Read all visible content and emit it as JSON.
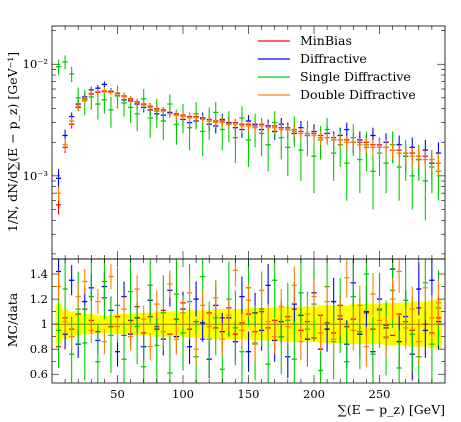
{
  "chart_data": {
    "type": "scatter",
    "x": [
      5,
      10,
      15,
      20,
      25,
      30,
      35,
      40,
      45,
      50,
      55,
      60,
      65,
      70,
      75,
      80,
      85,
      90,
      95,
      100,
      105,
      110,
      115,
      120,
      125,
      130,
      135,
      140,
      145,
      150,
      155,
      160,
      165,
      170,
      175,
      180,
      185,
      190,
      195,
      200,
      205,
      210,
      215,
      220,
      225,
      230,
      235,
      240,
      245,
      250,
      255,
      260,
      265,
      270,
      275,
      280,
      285,
      290,
      295
    ],
    "xlim": [
      0,
      300
    ],
    "xlabel": "∑(E − p_z) [GeV]",
    "xticks": [
      "50",
      "100",
      "150",
      "200",
      "250"
    ],
    "top_panel": {
      "ylabel": "1/N, dN/d∑(E − p_z) [GeV⁻¹]",
      "ylim": [
        0.00018,
        0.022
      ],
      "log_scale": true,
      "yticks": [
        "10⁻³",
        "10⁻²"
      ]
    },
    "ratio_panel": {
      "ylabel": "MC/data",
      "ylim": [
        0.53,
        1.52
      ],
      "yticks": [
        "0.6",
        "0.8",
        "1",
        "1.2",
        "1.4"
      ],
      "reference_line": 1,
      "data_uncertainty_half_width": [
        0.16,
        0.12,
        0.1,
        0.09,
        0.08,
        0.08,
        0.07,
        0.07,
        0.07,
        0.08,
        0.08,
        0.08,
        0.09,
        0.09,
        0.09,
        0.1,
        0.1,
        0.1,
        0.1,
        0.1,
        0.11,
        0.11,
        0.11,
        0.11,
        0.12,
        0.12,
        0.12,
        0.12,
        0.12,
        0.13,
        0.13,
        0.13,
        0.13,
        0.13,
        0.14,
        0.14,
        0.14,
        0.14,
        0.14,
        0.14,
        0.15,
        0.15,
        0.15,
        0.15,
        0.15,
        0.16,
        0.16,
        0.16,
        0.16,
        0.16,
        0.17,
        0.17,
        0.17,
        0.17,
        0.18,
        0.18,
        0.18,
        0.19,
        0.2
      ]
    },
    "legend_position": "top-right",
    "series": [
      {
        "name": "MinBias",
        "color": "#ff0000",
        "values": [
          0.00055,
          0.0018,
          0.0029,
          0.0041,
          0.0049,
          0.0054,
          0.0056,
          0.0057,
          0.0057,
          0.0055,
          0.0052,
          0.0049,
          0.0046,
          0.0044,
          0.0042,
          0.004,
          0.0039,
          0.0037,
          0.0036,
          0.0035,
          0.0034,
          0.0034,
          0.0033,
          0.0032,
          0.0031,
          0.0031,
          0.003,
          0.003,
          0.0029,
          0.0029,
          0.0028,
          0.0029,
          0.0028,
          0.0028,
          0.0027,
          0.0027,
          0.0026,
          0.0025,
          0.0024,
          0.0024,
          0.0023,
          0.0022,
          0.0022,
          0.0021,
          0.0021,
          0.002,
          0.002,
          0.002,
          0.0019,
          0.0019,
          0.0018,
          0.0017,
          0.0017,
          0.0016,
          0.0016,
          0.0015,
          0.0015,
          0.0014,
          0.0013
        ],
        "errors": [
          0.0001,
          0.0002,
          0.00025,
          0.0003,
          0.0003,
          0.0003,
          0.0003,
          0.0003,
          0.0003,
          0.0003,
          0.0003,
          0.0003,
          0.0003,
          0.0003,
          0.0003,
          0.00025,
          0.00025,
          0.00025,
          0.00025,
          0.00025,
          0.00025,
          0.00025,
          0.00025,
          0.00025,
          0.00025,
          0.00025,
          0.00025,
          0.00025,
          0.00025,
          0.00025,
          0.00025,
          0.00025,
          0.00025,
          0.00025,
          0.00025,
          0.00025,
          0.00025,
          0.00025,
          0.00025,
          0.00025,
          0.00025,
          0.00025,
          0.00025,
          0.00025,
          0.00025,
          0.00025,
          0.00025,
          0.00025,
          0.00025,
          0.00025,
          0.00025,
          0.00025,
          0.00025,
          0.00025,
          0.00025,
          0.00025,
          0.00025,
          0.00025,
          0.00025
        ],
        "ratio": [
          0.82,
          1.05,
          0.96,
          1.08,
          1.12,
          1.03,
          0.94,
          1.21,
          0.98,
          1.06,
          0.91,
          1.03,
          1.14,
          0.93,
          1.06,
          0.98,
          1.11,
          0.92,
          1.04,
          1.17,
          0.96,
          1.02,
          0.88,
          1.09,
          0.97,
          1.05,
          1.13,
          0.92,
          1.01,
          1.08,
          0.94,
          1.1,
          0.97,
          1.03,
          0.9,
          1.06,
          1.12,
          0.95,
          1.02,
          0.89,
          1.07,
          1.01,
          0.93,
          1.15,
          0.98,
          1.04,
          0.92,
          1.09,
          0.96,
          1.12,
          0.99,
          0.91,
          1.08,
          1.02,
          0.95,
          1.13,
          1,
          0.93,
          1.05
        ]
      },
      {
        "name": "Diffractive",
        "color": "#0000ff",
        "values": [
          0.00095,
          0.0023,
          0.0034,
          0.0044,
          0.0051,
          0.0059,
          0.0061,
          0.0066,
          0.0057,
          0.0052,
          0.0048,
          0.0047,
          0.0044,
          0.0041,
          0.0039,
          0.0036,
          0.0035,
          0.0037,
          0.0035,
          0.0032,
          0.003,
          0.0031,
          0.0033,
          0.0029,
          0.0028,
          0.0032,
          0.003,
          0.0027,
          0.0026,
          0.0031,
          0.0029,
          0.0026,
          0.0028,
          0.0025,
          0.0029,
          0.0026,
          0.0024,
          0.0027,
          0.0023,
          0.0025,
          0.0022,
          0.0024,
          0.0021,
          0.0023,
          0.0026,
          0.002,
          0.0021,
          0.0019,
          0.0023,
          0.0018,
          0.002,
          0.0017,
          0.0019,
          0.0015,
          0.0018,
          0.0014,
          0.0017,
          0.0013,
          0.0016
        ],
        "errors": [
          0.0002,
          0.0003,
          0.0003,
          0.0004,
          0.0004,
          0.0004,
          0.0004,
          0.0004,
          0.0004,
          0.0004,
          0.0004,
          0.0004,
          0.0004,
          0.0004,
          0.0004,
          0.0004,
          0.0004,
          0.0004,
          0.0004,
          0.0004,
          0.0004,
          0.0004,
          0.0004,
          0.0004,
          0.0004,
          0.0004,
          0.0004,
          0.0004,
          0.0004,
          0.0004,
          0.0004,
          0.0004,
          0.0004,
          0.0004,
          0.0004,
          0.0004,
          0.0004,
          0.0004,
          0.0004,
          0.0004,
          0.0004,
          0.0004,
          0.0004,
          0.0004,
          0.0004,
          0.0004,
          0.0004,
          0.0004,
          0.0004,
          0.0004,
          0.0004,
          0.0004,
          0.0004,
          0.0004,
          0.0004,
          0.0004,
          0.0004,
          0.0004,
          0.0004
        ],
        "ratio": [
          1.42,
          0.92,
          1.35,
          0.84,
          1.18,
          1.29,
          0.87,
          1.3,
          1.11,
          0.78,
          1.22,
          0.92,
          1.05,
          0.82,
          1.19,
          0.96,
          0.88,
          1.27,
          0.9,
          1.12,
          0.82,
          1.2,
          1.01,
          0.72,
          1.15,
          0.94,
          1.05,
          0.86,
          1.22,
          0.78,
          1.09,
          0.95,
          1.31,
          0.87,
          1.02,
          0.74,
          1.16,
          1.07,
          0.88,
          1.25,
          0.8,
          0.96,
          1.18,
          1.04,
          0.84,
          1.33,
          0.92,
          1.1,
          0.78,
          1.2,
          0.97,
          1.44,
          0.86,
          1.06,
          0.76,
          1.28,
          0.95,
          1.35,
          1.02
        ],
        "ratio_errors": [
          0.18,
          0.12,
          0.12,
          0.11,
          0.11,
          0.11,
          0.11,
          0.11,
          0.11,
          0.12,
          0.12,
          0.12,
          0.12,
          0.12,
          0.13,
          0.13,
          0.13,
          0.13,
          0.14,
          0.14,
          0.14,
          0.14,
          0.15,
          0.15,
          0.15,
          0.15,
          0.15,
          0.16,
          0.16,
          0.16,
          0.16,
          0.16,
          0.17,
          0.17,
          0.17,
          0.17,
          0.17,
          0.18,
          0.18,
          0.18,
          0.18,
          0.18,
          0.19,
          0.19,
          0.19,
          0.19,
          0.19,
          0.2,
          0.2,
          0.2,
          0.2,
          0.2,
          0.21,
          0.21,
          0.21,
          0.21,
          0.22,
          0.22,
          0.22
        ]
      },
      {
        "name": "Single Diffractive",
        "color": "#00cc00",
        "values": [
          0.0095,
          0.0105,
          0.0082,
          0.005,
          0.0047,
          0.0051,
          0.0044,
          0.0048,
          0.0039,
          0.0052,
          0.0045,
          0.0041,
          0.0036,
          0.0049,
          0.0033,
          0.0038,
          0.0031,
          0.0044,
          0.0029,
          0.0034,
          0.0027,
          0.0036,
          0.0025,
          0.0031,
          0.0037,
          0.0026,
          0.0029,
          0.0022,
          0.0033,
          0.0021,
          0.0027,
          0.0024,
          0.0019,
          0.003,
          0.0022,
          0.0018,
          0.0026,
          0.0017,
          0.0023,
          0.0015,
          0.0021,
          0.0026,
          0.0016,
          0.0019,
          0.0013,
          0.0022,
          0.0014,
          0.0018,
          0.0011,
          0.0016,
          0.0013,
          0.0019,
          0.0012,
          0.0015,
          0.001,
          0.0014,
          0.0009,
          0.0012,
          0.0011
        ],
        "errors": [
          0.0015,
          0.0015,
          0.0013,
          0.0012,
          0.0012,
          0.0012,
          0.0012,
          0.0012,
          0.0012,
          0.0012,
          0.0011,
          0.0011,
          0.0011,
          0.0011,
          0.0011,
          0.0011,
          0.001,
          0.001,
          0.001,
          0.001,
          0.001,
          0.001,
          0.001,
          0.001,
          0.0009,
          0.0009,
          0.0009,
          0.0009,
          0.0009,
          0.0009,
          0.0009,
          0.0009,
          0.0008,
          0.0008,
          0.0008,
          0.0008,
          0.0008,
          0.0008,
          0.0008,
          0.0008,
          0.0007,
          0.0007,
          0.0007,
          0.0007,
          0.0007,
          0.0007,
          0.0007,
          0.0007,
          0.0006,
          0.0006,
          0.0006,
          0.0006,
          0.0006,
          0.0006,
          0.0005,
          0.0005,
          0.0005,
          0.0005,
          0.0005
        ],
        "ratio": [
          0.95,
          1.28,
          0.76,
          1.12,
          0.85,
          1.22,
          0.7,
          1.34,
          0.91,
          1.15,
          0.72,
          1.26,
          0.98,
          0.66,
          1.31,
          0.83,
          1.09,
          0.61,
          1.24,
          0.93,
          1.18,
          0.74,
          1.38,
          0.88,
          1.05,
          0.64,
          1.2,
          0.97,
          0.78,
          1.29,
          0.85,
          1.12,
          0.68,
          1.35,
          0.9,
          1.03,
          0.72,
          1.25,
          0.96,
          1.16,
          0.63,
          1.3,
          0.86,
          1.07,
          0.7,
          1.22,
          0.94,
          1.4,
          0.76,
          1.11,
          0.89,
          1.27,
          0.65,
          1.19,
          0.92,
          0.74,
          1.33,
          0.84,
          1.13
        ],
        "ratio_errors": [
          0.3,
          0.3,
          0.3,
          0.3,
          0.3,
          0.3,
          0.3,
          0.3,
          0.3,
          0.3,
          0.3,
          0.3,
          0.3,
          0.3,
          0.3,
          0.3,
          0.3,
          0.3,
          0.3,
          0.3,
          0.3,
          0.3,
          0.3,
          0.3,
          0.3,
          0.3,
          0.3,
          0.3,
          0.3,
          0.3,
          0.3,
          0.3,
          0.3,
          0.3,
          0.3,
          0.3,
          0.3,
          0.3,
          0.3,
          0.3,
          0.3,
          0.3,
          0.3,
          0.3,
          0.3,
          0.3,
          0.3,
          0.3,
          0.3,
          0.3,
          0.3,
          0.3,
          0.3,
          0.3,
          0.3,
          0.3,
          0.3,
          0.3,
          0.3
        ]
      },
      {
        "name": "Double Diffractive",
        "color": "#ff8000",
        "values": [
          0.0007,
          0.0019,
          0.0031,
          0.0042,
          0.0048,
          0.0055,
          0.0057,
          0.0058,
          0.0056,
          0.0054,
          0.0051,
          0.0048,
          0.0045,
          0.0043,
          0.0041,
          0.0039,
          0.0038,
          0.0036,
          0.0035,
          0.0034,
          0.0033,
          0.0033,
          0.0032,
          0.0031,
          0.003,
          0.003,
          0.0029,
          0.0029,
          0.0028,
          0.0028,
          0.0027,
          0.0028,
          0.0027,
          0.0027,
          0.0026,
          0.0026,
          0.0025,
          0.0024,
          0.0024,
          0.0023,
          0.0022,
          0.0022,
          0.0021,
          0.0021,
          0.002,
          0.002,
          0.0019,
          0.0019,
          0.0018,
          0.0018,
          0.0018,
          0.0017,
          0.0016,
          0.0016,
          0.0015,
          0.0015,
          0.0014,
          0.0014,
          0.0013
        ],
        "errors": [
          0.0001,
          0.00025,
          0.0003,
          0.00035,
          0.00035,
          0.00035,
          0.00035,
          0.00035,
          0.00035,
          0.00035,
          0.00035,
          0.00035,
          0.00035,
          0.00035,
          0.0003,
          0.0003,
          0.0003,
          0.0003,
          0.0003,
          0.0003,
          0.0003,
          0.0003,
          0.0003,
          0.0003,
          0.0003,
          0.0003,
          0.0003,
          0.0003,
          0.0003,
          0.0003,
          0.0003,
          0.0003,
          0.0003,
          0.0003,
          0.0003,
          0.0003,
          0.0003,
          0.0003,
          0.0003,
          0.0003,
          0.0003,
          0.0003,
          0.0003,
          0.0003,
          0.0003,
          0.0003,
          0.0003,
          0.0003,
          0.0003,
          0.0003,
          0.0003,
          0.0003,
          0.0003,
          0.0003,
          0.0003,
          0.0003,
          0.0003,
          0.0003,
          0.0003
        ],
        "ratio": [
          1.3,
          1.02,
          0.9,
          1.22,
          1.34,
          0.95,
          1.18,
          0.86,
          1.38,
          0.98,
          1.12,
          0.9,
          1.28,
          1.04,
          0.82,
          1.16,
          0.94,
          1.32,
          0.88,
          1.09,
          1.25,
          0.8,
          1.15,
          0.98,
          1.21,
          0.88,
          1.07,
          1.43,
          0.95,
          1.19,
          0.84,
          1.27,
          1.02,
          0.9,
          1.14,
          0.98,
          1.31,
          0.86,
          1.08,
          1.22,
          0.93,
          1.18,
          0.88,
          1.06,
          1.37,
          0.95,
          1.15,
          0.82,
          1.24,
          1.03,
          0.9,
          1.2,
          1.42,
          0.97,
          1.12,
          0.86,
          1.29,
          1.05,
          1.17
        ],
        "ratio_errors": [
          0.12,
          0.1,
          0.1,
          0.1,
          0.1,
          0.1,
          0.1,
          0.1,
          0.1,
          0.1,
          0.1,
          0.11,
          0.11,
          0.11,
          0.11,
          0.11,
          0.11,
          0.11,
          0.12,
          0.12,
          0.12,
          0.12,
          0.12,
          0.12,
          0.13,
          0.13,
          0.13,
          0.13,
          0.13,
          0.13,
          0.14,
          0.14,
          0.14,
          0.14,
          0.14,
          0.14,
          0.15,
          0.15,
          0.15,
          0.15,
          0.15,
          0.15,
          0.16,
          0.16,
          0.16,
          0.16,
          0.16,
          0.16,
          0.17,
          0.17,
          0.17,
          0.17,
          0.17,
          0.17,
          0.18,
          0.18,
          0.18,
          0.18,
          0.18
        ]
      }
    ]
  }
}
